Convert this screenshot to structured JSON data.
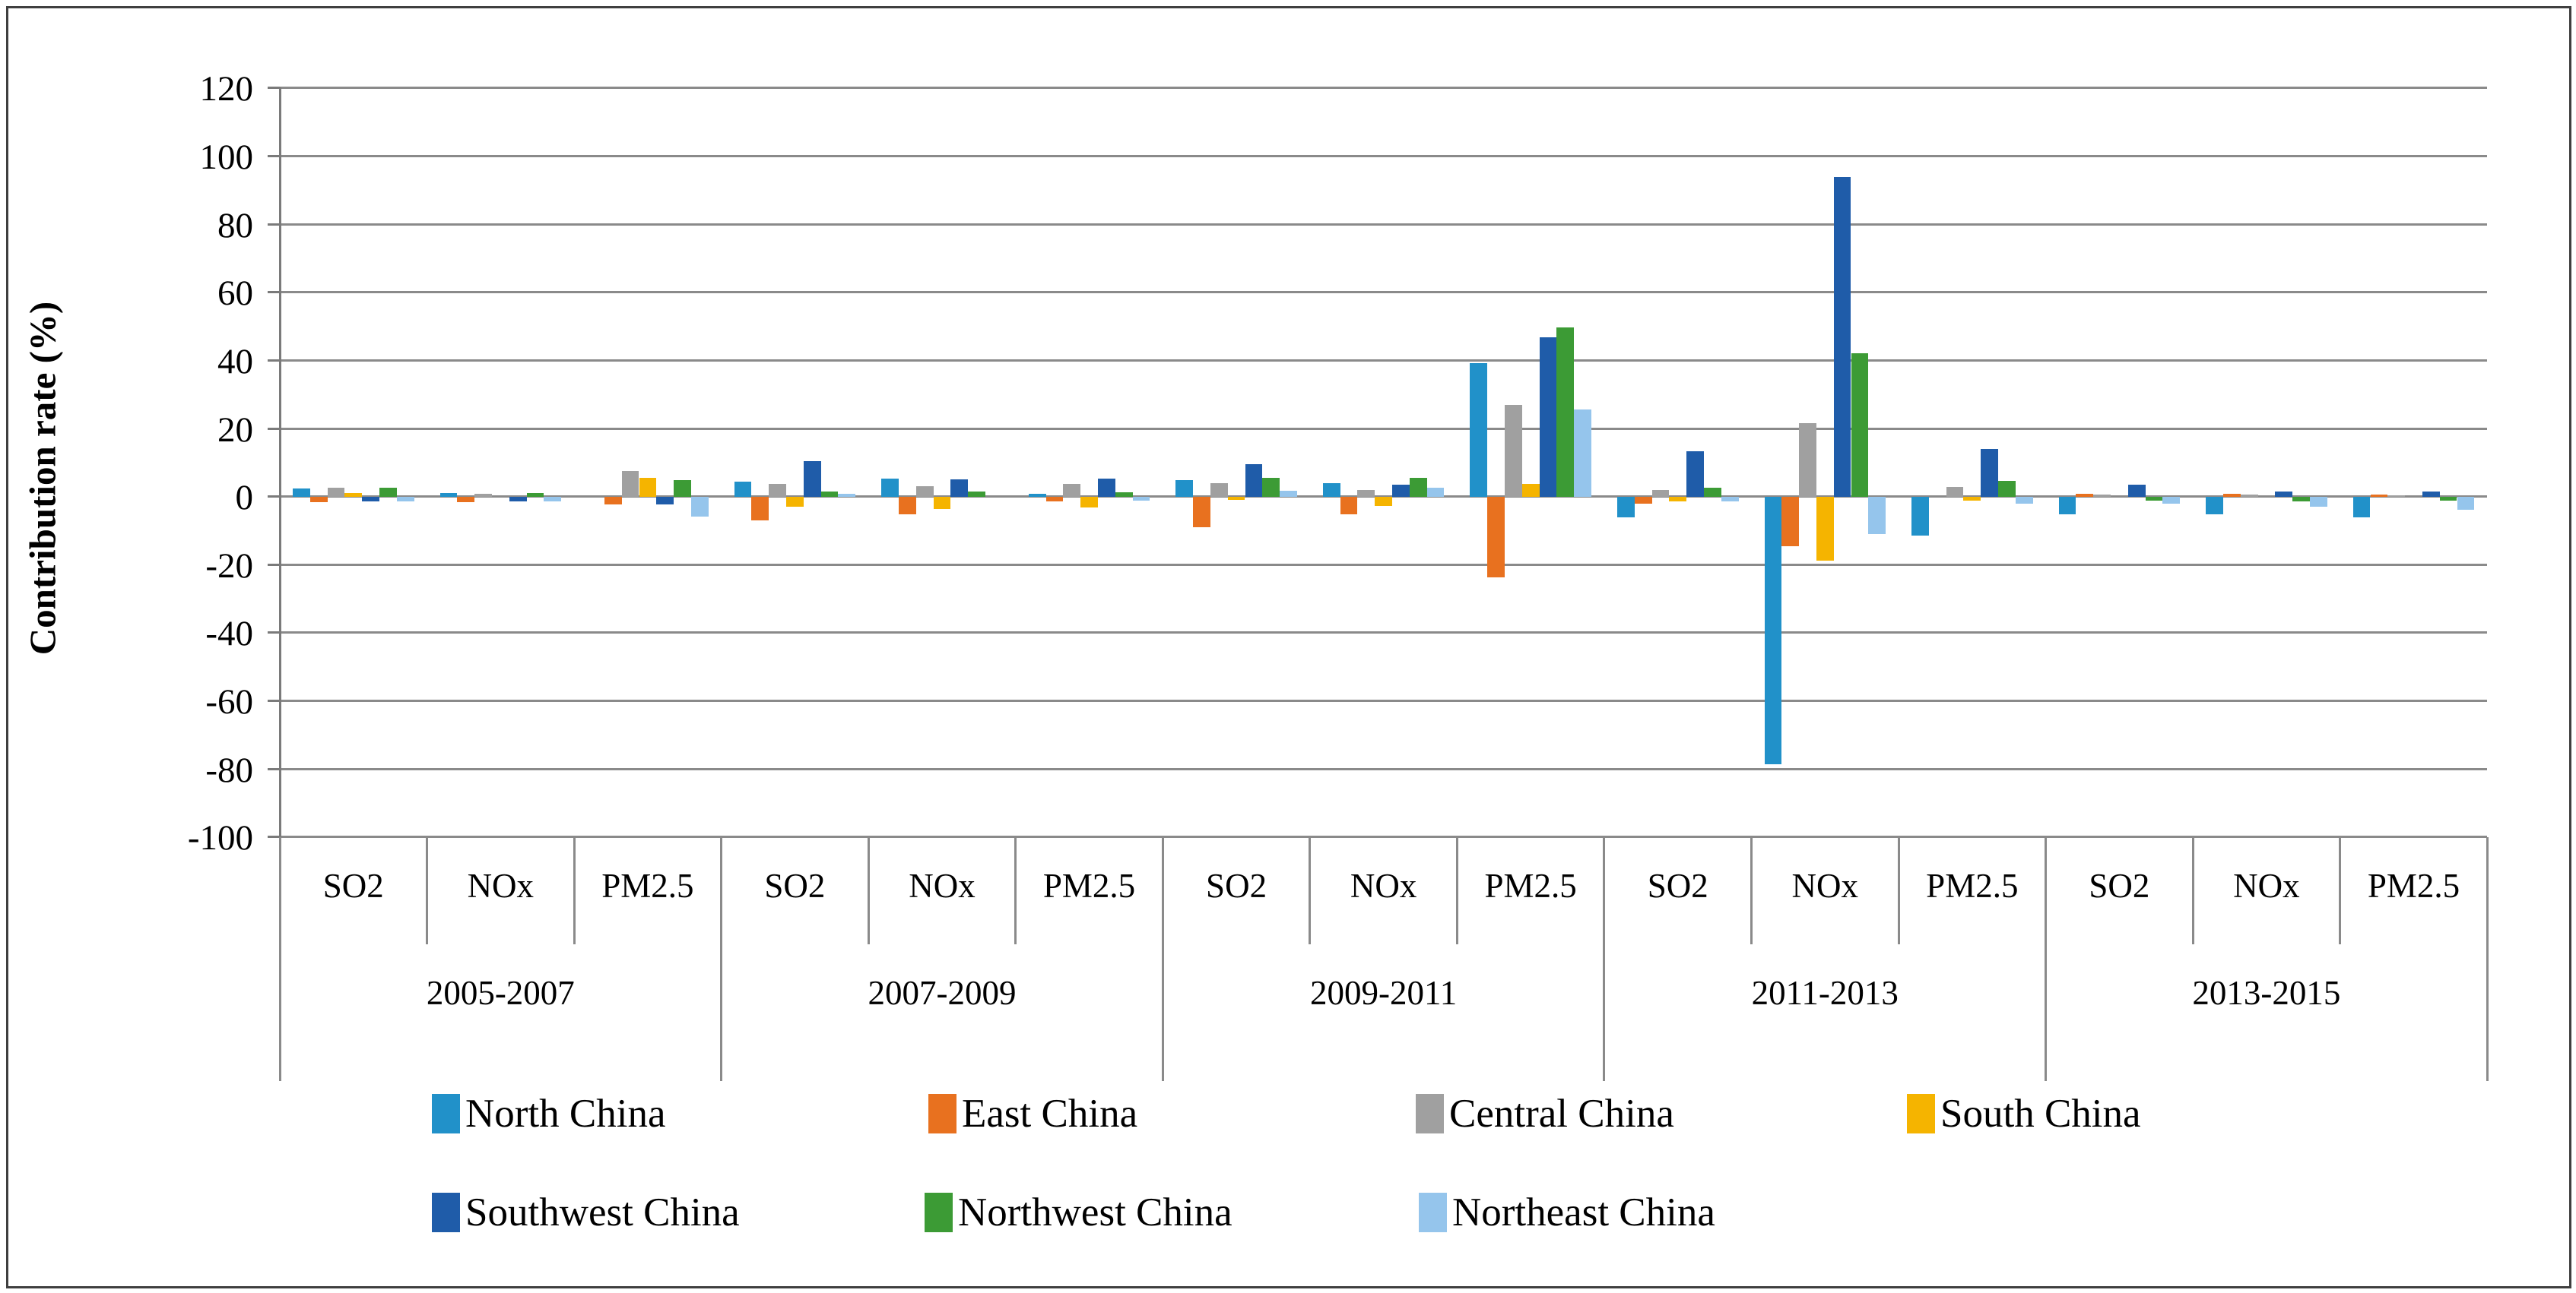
{
  "chart_data": {
    "type": "bar",
    "title": "",
    "ylabel": "Contribution rate (%)",
    "ylim": [
      -100,
      120
    ],
    "ytick_step": 20,
    "yticks": [
      120,
      100,
      80,
      60,
      40,
      20,
      0,
      -20,
      -40,
      -60,
      -80,
      -100
    ],
    "grid": true,
    "periods": [
      "2005-2007",
      "2007-2009",
      "2009-2011",
      "2011-2013",
      "2013-2015"
    ],
    "pollutants": [
      "SO2",
      "NOx",
      "PM2.5"
    ],
    "categories": [
      "2005-2007 SO2",
      "2005-2007 NOx",
      "2005-2007 PM2.5",
      "2007-2009 SO2",
      "2007-2009 NOx",
      "2007-2009 PM2.5",
      "2009-2011 SO2",
      "2009-2011 NOx",
      "2009-2011 PM2.5",
      "2011-2013 SO2",
      "2011-2013 NOx",
      "2011-2013 PM2.5",
      "2013-2015 SO2",
      "2013-2015 NOx",
      "2013-2015 PM2.5"
    ],
    "series": [
      {
        "name": "North China",
        "color": "#2191C9",
        "values": [
          2.4,
          1.1,
          0.0,
          4.4,
          5.3,
          0.9,
          4.9,
          4.0,
          39.3,
          -6.0,
          -78.6,
          -11.4,
          -5.1,
          -5.1,
          -6.0
        ]
      },
      {
        "name": "East China",
        "color": "#E8711F",
        "values": [
          -1.7,
          -1.6,
          -2.4,
          -7.0,
          -5.3,
          -1.3,
          -9.1,
          -5.3,
          -23.8,
          -2.0,
          -14.5,
          0.0,
          0.9,
          0.9,
          0.7
        ]
      },
      {
        "name": "Central China",
        "color": "#A0A0A0",
        "values": [
          2.6,
          0.9,
          7.6,
          3.8,
          3.0,
          3.8,
          4.0,
          2.0,
          27.0,
          2.0,
          21.5,
          2.9,
          0.7,
          0.7,
          0.4
        ]
      },
      {
        "name": "South China",
        "color": "#F5B400",
        "values": [
          1.1,
          0.0,
          5.6,
          -3.0,
          -3.6,
          -3.1,
          -0.9,
          -2.7,
          3.8,
          -1.3,
          -18.7,
          -1.1,
          0.0,
          0.0,
          0.0
        ]
      },
      {
        "name": "Southwest China",
        "color": "#1F5CA9",
        "values": [
          -1.4,
          -1.3,
          -2.2,
          10.4,
          5.1,
          5.3,
          9.5,
          3.5,
          46.7,
          13.3,
          93.8,
          13.9,
          3.6,
          1.6,
          1.6
        ]
      },
      {
        "name": "Northwest China",
        "color": "#3C9B35",
        "values": [
          2.7,
          1.1,
          4.9,
          1.6,
          1.5,
          1.3,
          5.6,
          5.6,
          49.7,
          2.5,
          42.2,
          4.7,
          -1.1,
          -1.3,
          -1.1
        ]
      },
      {
        "name": "Northeast China",
        "color": "#95C5EC",
        "values": [
          -1.3,
          -1.3,
          -5.8,
          0.9,
          0.0,
          -1.1,
          1.8,
          2.7,
          25.6,
          -1.3,
          -10.9,
          -2.0,
          -2.0,
          -3.0,
          -3.8
        ]
      }
    ],
    "legend_rows": [
      [
        "North China",
        "East China",
        "Central China",
        "South China"
      ],
      [
        "Southwest China",
        "Northwest China",
        "Northeast China"
      ]
    ],
    "legend_position": "bottom"
  }
}
